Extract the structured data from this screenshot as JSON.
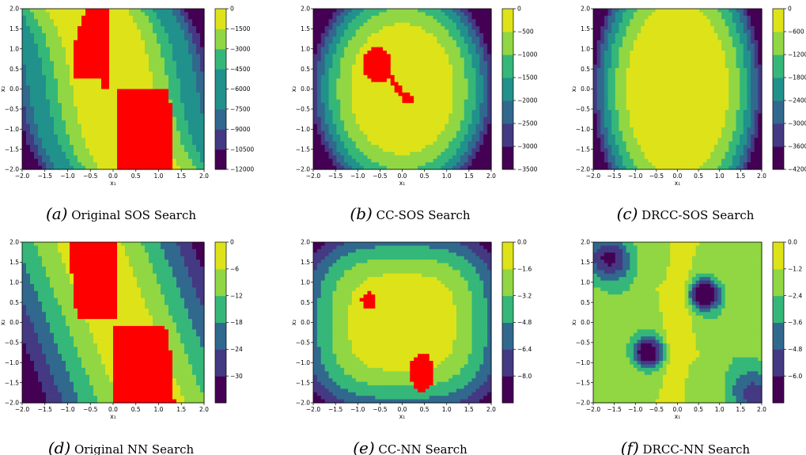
{
  "chart_data": [
    {
      "type": "contour",
      "caption_letter": "a",
      "caption_text": "Original SOS Search",
      "xlabel": "x₁",
      "ylabel": "x₂",
      "xlim": [
        -2.0,
        2.0
      ],
      "ylim": [
        -2.0,
        2.0
      ],
      "xticks": [
        "−2.0",
        "−1.5",
        "−1.0",
        "−0.5",
        "0.0",
        "0.5",
        "1.0",
        "1.5",
        "2.0"
      ],
      "yticks": [
        "−2.0",
        "−1.5",
        "−1.0",
        "−0.5",
        "0.0",
        "0.5",
        "1.0",
        "1.5",
        "2.0"
      ],
      "colorbar": {
        "levels": [
          -12000,
          -10500,
          -9000,
          -7500,
          -6000,
          -4500,
          -3000,
          -1500,
          0
        ],
        "tick_labels": [
          "−12000",
          "−10500",
          "−9000",
          "−7500",
          "−6000",
          "−4500",
          "−3000",
          "−1500",
          "0"
        ]
      },
      "unsafe_region_color": "#ff0000",
      "field": "sos_orig"
    },
    {
      "type": "contour",
      "caption_letter": "b",
      "caption_text": "CC-SOS Search",
      "xlabel": "x₁",
      "ylabel": "x₂",
      "xlim": [
        -2.0,
        2.0
      ],
      "ylim": [
        -2.0,
        2.0
      ],
      "xticks": [
        "−2.0",
        "−1.5",
        "−1.0",
        "−0.5",
        "0.0",
        "0.5",
        "1.0",
        "1.5",
        "2.0"
      ],
      "yticks": [
        "−2.0",
        "−1.5",
        "−1.0",
        "−0.5",
        "0.0",
        "0.5",
        "1.0",
        "1.5",
        "2.0"
      ],
      "colorbar": {
        "levels": [
          -3500,
          -3000,
          -2500,
          -2000,
          -1500,
          -1000,
          -500,
          0
        ],
        "tick_labels": [
          "−3500",
          "−3000",
          "−2500",
          "−2000",
          "−1500",
          "−1000",
          "−500",
          "0"
        ]
      },
      "unsafe_region_color": "#ff0000",
      "field": "sos_cc"
    },
    {
      "type": "contour",
      "caption_letter": "c",
      "caption_text": "DRCC-SOS Search",
      "xlabel": "x₁",
      "ylabel": "x₂",
      "xlim": [
        -2.0,
        2.0
      ],
      "ylim": [
        -2.0,
        2.0
      ],
      "xticks": [
        "−2.0",
        "−1.5",
        "−1.0",
        "−0.5",
        "0.0",
        "0.5",
        "1.0",
        "1.5",
        "2.0"
      ],
      "yticks": [
        "−2.0",
        "−1.5",
        "−1.0",
        "−0.5",
        "0.0",
        "0.5",
        "1.0",
        "1.5",
        "2.0"
      ],
      "colorbar": {
        "levels": [
          -4200,
          -3600,
          -3000,
          -2400,
          -1800,
          -1200,
          -600,
          0
        ],
        "tick_labels": [
          "−4200",
          "−3600",
          "−3000",
          "−2400",
          "−1800",
          "−1200",
          "−600",
          "0"
        ]
      },
      "unsafe_region_color": "#ff0000",
      "field": "sos_drcc"
    },
    {
      "type": "contour",
      "caption_letter": "d",
      "caption_text": "Original NN Search",
      "xlabel": "x₁",
      "ylabel": "x₂",
      "xlim": [
        -2.0,
        2.0
      ],
      "ylim": [
        -2.0,
        2.0
      ],
      "xticks": [
        "−2.0",
        "−1.5",
        "−1.0",
        "−0.5",
        "0.0",
        "0.5",
        "1.0",
        "1.5",
        "2.0"
      ],
      "yticks": [
        "−2.0",
        "−1.5",
        "−1.0",
        "−0.5",
        "0.0",
        "0.5",
        "1.0",
        "1.5",
        "2.0"
      ],
      "colorbar": {
        "levels": [
          -33,
          -30,
          -24,
          -18,
          -12,
          -6,
          0
        ],
        "tick_labels": [
          "",
          "−30",
          "−24",
          "−18",
          "−12",
          "−6",
          "0"
        ]
      },
      "unsafe_region_color": "#ff0000",
      "field": "nn_orig"
    },
    {
      "type": "contour",
      "caption_letter": "e",
      "caption_text": "CC-NN Search",
      "xlabel": "x₁",
      "ylabel": "x₂",
      "xlim": [
        -2.0,
        2.0
      ],
      "ylim": [
        -2.0,
        2.0
      ],
      "xticks": [
        "−2.0",
        "−1.5",
        "−1.0",
        "−0.5",
        "0.0",
        "0.5",
        "1.0",
        "1.5",
        "2.0"
      ],
      "yticks": [
        "−2.0",
        "−1.5",
        "−1.0",
        "−0.5",
        "0.0",
        "0.5",
        "1.0",
        "1.5",
        "2.0"
      ],
      "colorbar": {
        "levels": [
          -8.8,
          -8.0,
          -6.4,
          -4.8,
          -3.2,
          -1.6,
          0.0
        ],
        "tick_labels": [
          "",
          "−8.0",
          "−6.4",
          "−4.8",
          "−3.2",
          "−1.6",
          "0.0"
        ]
      },
      "unsafe_region_color": "#ff0000",
      "field": "nn_cc"
    },
    {
      "type": "contour",
      "caption_letter": "f",
      "caption_text": "DRCC-NN Search",
      "xlabel": "x₁",
      "ylabel": "x₂",
      "xlim": [
        -2.0,
        2.0
      ],
      "ylim": [
        -2.0,
        2.0
      ],
      "xticks": [
        "−2.0",
        "−1.5",
        "−1.0",
        "−0.5",
        "0.0",
        "0.5",
        "1.0",
        "1.5",
        "2.0"
      ],
      "yticks": [
        "−2.0",
        "−1.5",
        "−1.0",
        "−0.5",
        "0.0",
        "0.5",
        "1.0",
        "1.5",
        "2.0"
      ],
      "colorbar": {
        "levels": [
          -6.6,
          -6.0,
          -4.8,
          -3.6,
          -2.4,
          -1.2,
          0.0
        ],
        "tick_labels": [
          "",
          "−6.0",
          "−4.8",
          "−3.6",
          "−2.4",
          "−1.2",
          "0.0"
        ]
      },
      "unsafe_region_color": "#ff0000",
      "field": "nn_drcc"
    }
  ]
}
